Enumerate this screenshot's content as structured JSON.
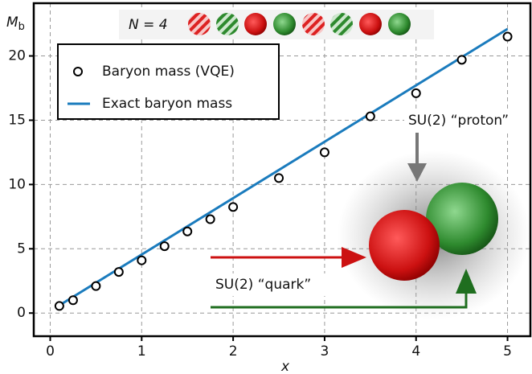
{
  "chart_data": {
    "type": "scatter",
    "x_label": "x",
    "y_label": "M",
    "y_label_subscript": "b",
    "xlim": [
      -0.18,
      5.25
    ],
    "ylim": [
      -1.8,
      24.1
    ],
    "xticks": [
      0,
      1,
      2,
      3,
      4,
      5
    ],
    "yticks": [
      0,
      5,
      10,
      15,
      20
    ],
    "grid": true,
    "legend": "upper left",
    "series": [
      {
        "name": "Baryon mass (VQE)",
        "style": "marker",
        "color": "#000000",
        "x": [
          0.1,
          0.25,
          0.5,
          0.75,
          1,
          1.25,
          1.5,
          1.75,
          2,
          2.5,
          3,
          3.5,
          4,
          4.5,
          5
        ],
        "values": [
          0.55,
          1.0,
          2.1,
          3.2,
          4.1,
          5.2,
          6.35,
          7.3,
          8.25,
          10.5,
          12.5,
          15.3,
          17.1,
          19.7,
          21.5
        ]
      },
      {
        "name": "Exact baryon mass",
        "style": "line",
        "color": "#1a7bbd",
        "x": [
          0.1,
          5
        ],
        "values": [
          0.6,
          22.1
        ]
      }
    ],
    "annotations": [
      "N = 4",
      "SU(2) “proton”",
      "SU(2) “quark”"
    ]
  }
}
